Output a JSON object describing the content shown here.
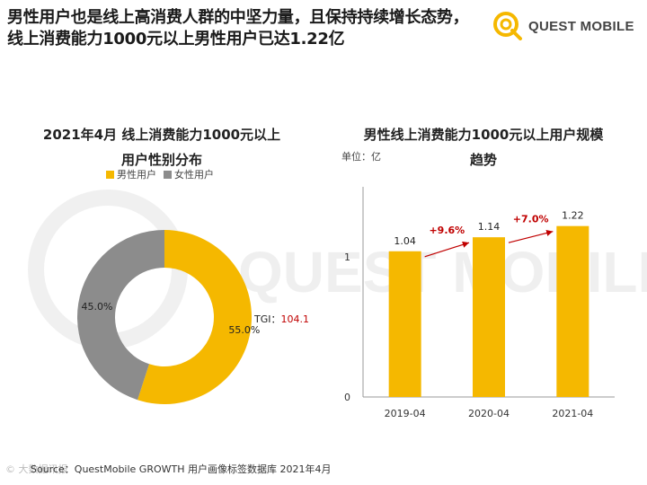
{
  "headline": {
    "line1": "男性用户也是线上高消费人群的中坚力量，且保持持续增长态势，",
    "line2": "线上消费能力1000元以上男性用户已达1.22亿"
  },
  "logo": {
    "text": "QUEST MOBILE",
    "watermark_text": "QUEST MOBILE"
  },
  "colors": {
    "accent": "#F5B800",
    "gray": "#8C8C8C",
    "red": "#C00000"
  },
  "chart_data": [
    {
      "type": "pie",
      "title_line1": "2021年4月 线上消费能力1000元以上",
      "title_line2": "用户性别分布",
      "labels": [
        "男性用户",
        "女性用户"
      ],
      "values": [
        55.0,
        45.0
      ],
      "value_labels": [
        "55.0%",
        "45.0%"
      ],
      "annotation": {
        "label": "TGI：",
        "value": "104.1"
      }
    },
    {
      "type": "bar",
      "title_line1": "男性线上消费能力1000元以上用户规模",
      "title_line2": "趋势",
      "unit": "单位：亿",
      "categories": [
        "2019-04",
        "2020-04",
        "2021-04"
      ],
      "values": [
        1.04,
        1.14,
        1.22
      ],
      "value_labels": [
        "1.04",
        "1.14",
        "1.22"
      ],
      "growth_labels": [
        "+9.6%",
        "+7.0%"
      ],
      "yticks": [
        "0",
        "1"
      ],
      "ylim": [
        0,
        1.5
      ]
    }
  ],
  "footer": {
    "source": "Source：QuestMobile GROWTH 用户画像标签数据库 2021年4月",
    "watermark": "© 大数据讯报"
  }
}
